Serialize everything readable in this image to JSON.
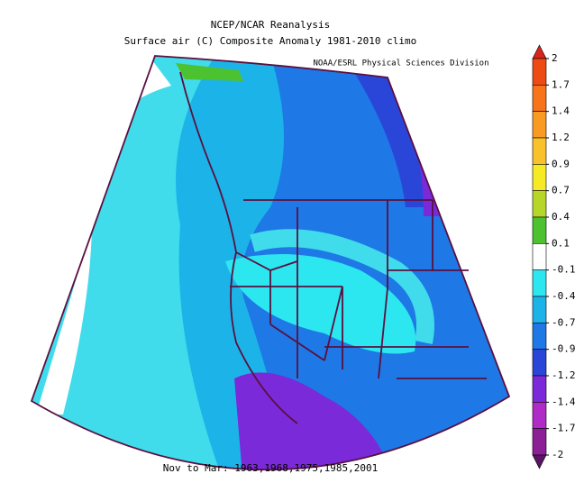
{
  "title": "NCEP/NCAR Reanalysis",
  "subtitle": "Surface air (C) Composite Anomaly 1981-2010 climo",
  "credit": "NOAA/ESRL Physical Sciences Division",
  "caption": "Nov to Mar: 1963,1968,1975,1985,2001",
  "colorbar": {
    "ticks": [
      2,
      1.7,
      1.4,
      1.2,
      0.9,
      0.7,
      0.4,
      0.1,
      -0.1,
      -0.4,
      -0.7,
      -0.9,
      -1.2,
      -1.4,
      -1.7,
      -2
    ],
    "colors": [
      "#d8241c",
      "#ee4a14",
      "#f7741a",
      "#f99a22",
      "#f9c22a",
      "#f5ea24",
      "#b6d62a",
      "#4cc230",
      "#ffffff",
      "#2ce6f0",
      "#1cb4e8",
      "#1e78e6",
      "#2a46d8",
      "#7a2ad8",
      "#b02ac8",
      "#8c1e96",
      "#5a1464"
    ]
  }
}
